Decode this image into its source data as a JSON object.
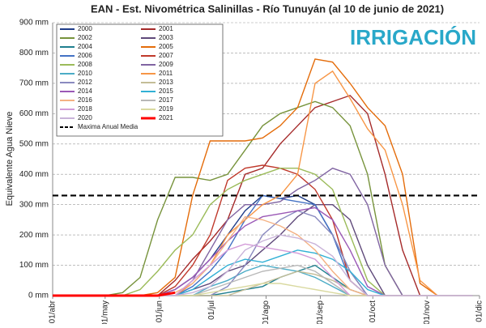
{
  "chart_data": {
    "type": "line",
    "title": "EAN - Est. Nivométrica Salinillas - Río Tunuyán (al 10 de junio de 2021)",
    "ylabel": "Equivalente Agua Nieve",
    "logo": "IRRIGACIÓN",
    "x": [
      0,
      10,
      20,
      30,
      40,
      50,
      60,
      70,
      80,
      90,
      100,
      110,
      120,
      130,
      140,
      150,
      160,
      170,
      180,
      190,
      200,
      210,
      220,
      230,
      240
    ],
    "xlim": [
      0,
      244
    ],
    "xticks": [
      {
        "value": 0,
        "label": "01/abr"
      },
      {
        "value": 30,
        "label": "01/may"
      },
      {
        "value": 61,
        "label": "01/jun"
      },
      {
        "value": 91,
        "label": "01/jul"
      },
      {
        "value": 122,
        "label": "01/ago"
      },
      {
        "value": 153,
        "label": "01/sep"
      },
      {
        "value": 183,
        "label": "01/oct"
      },
      {
        "value": 214,
        "label": "01/nov"
      },
      {
        "value": 244,
        "label": "01/dic"
      }
    ],
    "ylim": [
      0,
      900
    ],
    "yticks": [
      {
        "value": 0,
        "label": "0 mm"
      },
      {
        "value": 100,
        "label": "100 mm"
      },
      {
        "value": 200,
        "label": "200 mm"
      },
      {
        "value": 300,
        "label": "300 mm"
      },
      {
        "value": 400,
        "label": "400 mm"
      },
      {
        "value": 500,
        "label": "500 mm"
      },
      {
        "value": 600,
        "label": "600 mm"
      },
      {
        "value": 700,
        "label": "700 mm"
      },
      {
        "value": 800,
        "label": "800 mm"
      },
      {
        "value": 900,
        "label": "900 mm"
      }
    ],
    "grid": true,
    "legend": "upper-left",
    "series": [
      {
        "name": "2000",
        "color": "#1f3c88",
        "values": [
          0,
          0,
          0,
          0,
          0,
          0,
          0,
          20,
          60,
          120,
          200,
          280,
          330,
          320,
          330,
          300,
          200,
          80,
          0,
          0,
          0,
          0,
          0,
          0,
          0
        ]
      },
      {
        "name": "2001",
        "color": "#a52a2a",
        "values": [
          0,
          0,
          0,
          0,
          0,
          0,
          0,
          50,
          120,
          180,
          250,
          400,
          420,
          500,
          560,
          620,
          640,
          660,
          600,
          400,
          150,
          0,
          0,
          0,
          0
        ]
      },
      {
        "name": "2002",
        "color": "#77933c",
        "values": [
          0,
          0,
          0,
          0,
          10,
          60,
          250,
          390,
          390,
          380,
          400,
          480,
          560,
          600,
          620,
          640,
          620,
          560,
          400,
          100,
          0,
          0,
          0,
          0,
          0
        ]
      },
      {
        "name": "2003",
        "color": "#5f497a",
        "values": [
          0,
          0,
          0,
          0,
          0,
          0,
          0,
          0,
          20,
          40,
          80,
          100,
          150,
          200,
          260,
          300,
          300,
          250,
          100,
          0,
          0,
          0,
          0,
          0,
          0
        ]
      },
      {
        "name": "2004",
        "color": "#1f7f8f",
        "values": [
          0,
          0,
          0,
          0,
          0,
          0,
          0,
          0,
          0,
          0,
          10,
          20,
          30,
          60,
          80,
          100,
          60,
          20,
          0,
          0,
          0,
          0,
          0,
          0,
          0
        ]
      },
      {
        "name": "2005",
        "color": "#e46c0a",
        "values": [
          0,
          0,
          0,
          0,
          0,
          0,
          10,
          60,
          330,
          510,
          510,
          510,
          520,
          560,
          620,
          780,
          770,
          700,
          620,
          560,
          400,
          40,
          0,
          0,
          0
        ]
      },
      {
        "name": "2006",
        "color": "#4472c4",
        "values": [
          0,
          0,
          0,
          0,
          0,
          0,
          0,
          0,
          30,
          80,
          150,
          250,
          330,
          320,
          310,
          300,
          200,
          50,
          0,
          0,
          0,
          0,
          0,
          0,
          0
        ]
      },
      {
        "name": "2007",
        "color": "#c0392b",
        "values": [
          0,
          0,
          0,
          0,
          0,
          0,
          0,
          30,
          100,
          200,
          380,
          420,
          430,
          420,
          400,
          350,
          250,
          50,
          0,
          0,
          0,
          0,
          0,
          0,
          0
        ]
      },
      {
        "name": "2008",
        "color": "#9bbb59",
        "values": [
          0,
          0,
          0,
          0,
          0,
          20,
          80,
          150,
          200,
          300,
          350,
          380,
          400,
          420,
          420,
          400,
          350,
          200,
          50,
          0,
          0,
          0,
          0,
          0,
          0
        ]
      },
      {
        "name": "2009",
        "color": "#8064a2",
        "values": [
          0,
          0,
          0,
          0,
          0,
          0,
          0,
          0,
          50,
          150,
          250,
          300,
          300,
          310,
          350,
          380,
          420,
          400,
          300,
          100,
          0,
          0,
          0,
          0,
          0
        ]
      },
      {
        "name": "2010",
        "color": "#4bacc6",
        "values": [
          0,
          0,
          0,
          0,
          0,
          0,
          0,
          0,
          0,
          30,
          50,
          80,
          100,
          90,
          80,
          60,
          30,
          0,
          0,
          0,
          0,
          0,
          0,
          0,
          0
        ]
      },
      {
        "name": "2011",
        "color": "#f79646",
        "values": [
          0,
          0,
          0,
          0,
          0,
          0,
          0,
          0,
          40,
          100,
          200,
          250,
          300,
          330,
          400,
          700,
          740,
          650,
          550,
          480,
          300,
          50,
          0,
          0,
          0
        ]
      },
      {
        "name": "2012",
        "color": "#8a8abf",
        "values": [
          0,
          0,
          0,
          0,
          0,
          0,
          0,
          0,
          0,
          0,
          30,
          100,
          200,
          250,
          280,
          260,
          200,
          80,
          0,
          0,
          0,
          0,
          0,
          0,
          0
        ]
      },
      {
        "name": "2013",
        "color": "#c4bd97",
        "values": [
          0,
          0,
          0,
          0,
          0,
          0,
          0,
          0,
          0,
          0,
          0,
          20,
          40,
          60,
          80,
          70,
          50,
          20,
          0,
          0,
          0,
          0,
          0,
          0,
          0
        ]
      },
      {
        "name": "2014",
        "color": "#9b59b6",
        "values": [
          0,
          0,
          0,
          0,
          0,
          0,
          0,
          20,
          60,
          120,
          180,
          230,
          260,
          270,
          280,
          290,
          250,
          150,
          30,
          0,
          0,
          0,
          0,
          0,
          0
        ]
      },
      {
        "name": "2015",
        "color": "#31b0d5",
        "values": [
          0,
          0,
          0,
          0,
          0,
          0,
          0,
          0,
          20,
          60,
          100,
          120,
          110,
          130,
          150,
          140,
          120,
          80,
          20,
          0,
          0,
          0,
          0,
          0,
          0
        ]
      },
      {
        "name": "2016",
        "color": "#f4b183",
        "values": [
          0,
          0,
          0,
          0,
          0,
          0,
          0,
          10,
          40,
          100,
          180,
          260,
          250,
          230,
          200,
          150,
          80,
          20,
          0,
          0,
          0,
          0,
          0,
          0,
          0
        ]
      },
      {
        "name": "2017",
        "color": "#b7b7b7",
        "values": [
          0,
          0,
          0,
          0,
          0,
          0,
          0,
          0,
          0,
          20,
          40,
          60,
          80,
          90,
          100,
          80,
          40,
          0,
          0,
          0,
          0,
          0,
          0,
          0,
          0
        ]
      },
      {
        "name": "2018",
        "color": "#d39ad8",
        "values": [
          0,
          0,
          0,
          0,
          0,
          0,
          0,
          0,
          50,
          100,
          150,
          170,
          160,
          150,
          140,
          120,
          60,
          0,
          0,
          0,
          0,
          0,
          0,
          0,
          0
        ]
      },
      {
        "name": "2019",
        "color": "#d9d9a0",
        "values": [
          0,
          0,
          0,
          0,
          0,
          0,
          0,
          0,
          0,
          10,
          20,
          30,
          40,
          40,
          30,
          20,
          10,
          0,
          0,
          0,
          0,
          0,
          0,
          0,
          0
        ]
      },
      {
        "name": "2020",
        "color": "#c9b3d9",
        "values": [
          0,
          0,
          0,
          0,
          0,
          0,
          0,
          0,
          10,
          30,
          80,
          150,
          180,
          200,
          190,
          170,
          130,
          50,
          0,
          0,
          0,
          0,
          0,
          0,
          0
        ]
      },
      {
        "name": "2021",
        "color": "#ff0000",
        "values": [
          0,
          0,
          0,
          0,
          0,
          0,
          0,
          10,
          null,
          null,
          null,
          null,
          null,
          null,
          null,
          null,
          null,
          null,
          null,
          null,
          null,
          null,
          null,
          null,
          null
        ]
      }
    ],
    "mean_line": {
      "name": "Maxima Anual Media",
      "value": 330,
      "color": "#000000"
    }
  }
}
